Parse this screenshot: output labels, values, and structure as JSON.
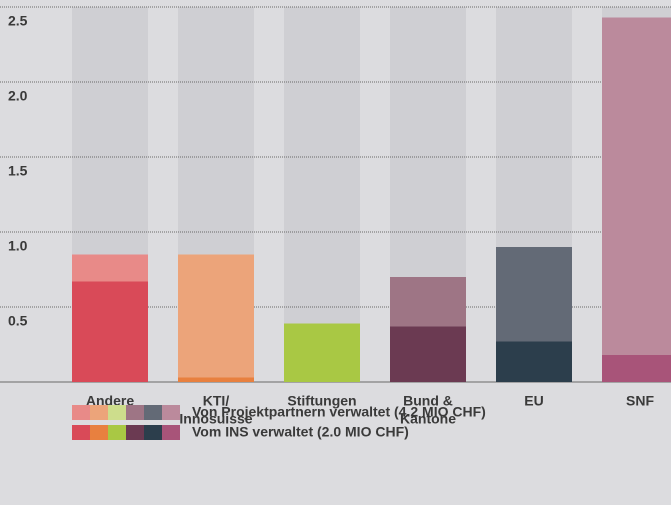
{
  "chart_data": {
    "type": "stacked_bar",
    "categories": [
      [
        "Andere"
      ],
      [
        "KTI/",
        "Innosuisse"
      ],
      [
        "Stiftungen"
      ],
      [
        "Bund &",
        "Kantone"
      ],
      [
        "EU"
      ],
      [
        "SNF"
      ]
    ],
    "series": [
      {
        "name": "Vom INS verwaltet (2.0 MIO CHF)",
        "colors": [
          "#d94a58",
          "#e8803f",
          "#a9c844",
          "#6b3a52",
          "#2c3e4c",
          "#a85479"
        ],
        "values": [
          0.67,
          0.03,
          0.39,
          0.37,
          0.27,
          0.18
        ]
      },
      {
        "name": "Von Projektpartnern verwaltet (4.2 MIO CHF)",
        "colors": [
          "#e88a88",
          "#eca47a",
          "#cddd8c",
          "#9e7585",
          "#636a76",
          "#bb8a9c"
        ],
        "values": [
          0.18,
          0.82,
          0,
          0.33,
          0.63,
          2.25
        ]
      }
    ],
    "ylim": [
      0,
      2.5
    ],
    "yticks": [
      {
        "value": 0.5,
        "label": "0.5"
      },
      {
        "value": 1,
        "label": "1.0"
      },
      {
        "value": 1.5,
        "label": "1.5"
      },
      {
        "value": 2,
        "label": "2.0"
      },
      {
        "value": 2.5,
        "label": "2.5"
      }
    ],
    "grid": true
  }
}
